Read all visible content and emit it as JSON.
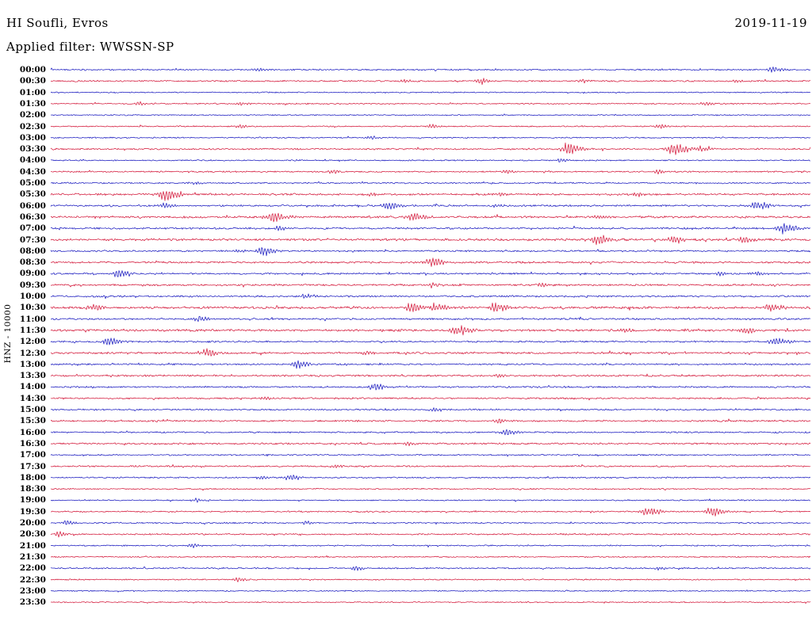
{
  "header": {
    "station_title": "HI Soufli, Evros",
    "date": "2019-11-19",
    "filter_label": "Applied filter: WWSSN-SP"
  },
  "y_axis_label": "HNZ - 10000",
  "chart_data": {
    "type": "line",
    "subtype": "helicorder-seismogram",
    "title": "HI Soufli, Evros",
    "date": "2019-11-19",
    "filter": "WWSSN-SP",
    "channel": "HNZ",
    "gain_scale": 10000,
    "minutes_per_row": 30,
    "grid": false,
    "background": "#ffffff",
    "colors": {
      "even_rows": "#1c1cc0",
      "odd_rows": "#d41a3c"
    },
    "row_labels": [
      "00:00",
      "00:30",
      "01:00",
      "01:30",
      "02:00",
      "02:30",
      "03:00",
      "03:30",
      "04:00",
      "04:30",
      "05:00",
      "05:30",
      "06:00",
      "06:30",
      "07:00",
      "07:30",
      "08:00",
      "08:30",
      "09:00",
      "09:30",
      "10:00",
      "10:30",
      "11:00",
      "11:30",
      "12:00",
      "12:30",
      "13:00",
      "13:30",
      "14:00",
      "14:30",
      "15:00",
      "15:30",
      "16:00",
      "16:30",
      "17:00",
      "17:30",
      "18:00",
      "18:30",
      "19:00",
      "19:30",
      "20:00",
      "20:30",
      "21:00",
      "21:30",
      "22:00",
      "22:30",
      "23:00",
      "23:30"
    ],
    "noise_amp": [
      1.0,
      1.1,
      0.8,
      0.9,
      0.8,
      0.9,
      0.9,
      1.2,
      0.9,
      1.0,
      1.0,
      1.5,
      1.3,
      1.5,
      1.3,
      1.6,
      1.2,
      1.4,
      1.2,
      1.3,
      1.3,
      1.7,
      1.3,
      1.7,
      1.2,
      1.4,
      1.2,
      1.3,
      1.2,
      1.2,
      1.1,
      1.2,
      1.1,
      1.2,
      1.0,
      1.1,
      1.0,
      0.9,
      0.9,
      1.0,
      1.0,
      1.1,
      0.9,
      0.9,
      1.0,
      0.9,
      0.8,
      0.8
    ],
    "events_format": "[row_index, x_fraction_of_row, amplitude_px, half_width_px]",
    "events": [
      [
        0,
        0.27,
        2,
        6
      ],
      [
        0,
        0.95,
        2.5,
        7
      ],
      [
        1,
        0.465,
        2,
        5
      ],
      [
        1,
        0.565,
        3,
        6
      ],
      [
        1,
        0.7,
        2,
        5
      ],
      [
        1,
        0.9,
        2,
        5
      ],
      [
        3,
        0.115,
        2,
        5
      ],
      [
        3,
        0.25,
        2,
        5
      ],
      [
        3,
        0.86,
        2,
        5
      ],
      [
        5,
        0.25,
        2,
        5
      ],
      [
        5,
        0.5,
        2,
        5
      ],
      [
        5,
        0.8,
        2.5,
        6
      ],
      [
        6,
        0.42,
        2,
        5
      ],
      [
        7,
        0.68,
        6,
        8
      ],
      [
        7,
        0.82,
        6,
        9
      ],
      [
        7,
        0.855,
        3,
        6
      ],
      [
        8,
        0.67,
        2,
        5
      ],
      [
        9,
        0.37,
        2,
        5
      ],
      [
        9,
        0.6,
        2,
        5
      ],
      [
        9,
        0.8,
        2,
        5
      ],
      [
        10,
        0.185,
        1.8,
        5
      ],
      [
        11,
        0.15,
        7,
        9
      ],
      [
        11,
        0.42,
        2,
        5
      ],
      [
        11,
        0.59,
        2,
        5
      ],
      [
        11,
        0.77,
        2,
        5
      ],
      [
        12,
        0.15,
        3,
        6
      ],
      [
        12,
        0.445,
        4,
        8
      ],
      [
        12,
        0.585,
        2,
        5
      ],
      [
        12,
        0.93,
        4.5,
        8
      ],
      [
        13,
        0.29,
        5,
        9
      ],
      [
        13,
        0.475,
        4,
        8
      ],
      [
        13,
        0.72,
        2,
        5
      ],
      [
        14,
        0.3,
        2.5,
        6
      ],
      [
        14,
        0.965,
        6,
        9
      ],
      [
        15,
        0.72,
        5,
        8
      ],
      [
        15,
        0.82,
        4,
        7
      ],
      [
        15,
        0.91,
        3.5,
        7
      ],
      [
        16,
        0.245,
        2,
        5
      ],
      [
        16,
        0.28,
        5,
        7
      ],
      [
        17,
        0.5,
        4.5,
        9
      ],
      [
        18,
        0.09,
        5,
        7
      ],
      [
        18,
        0.88,
        2,
        5
      ],
      [
        18,
        0.93,
        2,
        5
      ],
      [
        19,
        0.5,
        2.5,
        6
      ],
      [
        19,
        0.645,
        2,
        5
      ],
      [
        20,
        0.335,
        2.5,
        6
      ],
      [
        21,
        0.055,
        4,
        7
      ],
      [
        21,
        0.475,
        5,
        9
      ],
      [
        21,
        0.505,
        5,
        8
      ],
      [
        21,
        0.585,
        5,
        8
      ],
      [
        21,
        0.945,
        4,
        8
      ],
      [
        22,
        0.195,
        3,
        7
      ],
      [
        23,
        0.535,
        5,
        8
      ],
      [
        23,
        0.755,
        2.5,
        5
      ],
      [
        23,
        0.915,
        4,
        8
      ],
      [
        24,
        0.075,
        5,
        7
      ],
      [
        24,
        0.955,
        4.5,
        8
      ],
      [
        25,
        0.205,
        4,
        7
      ],
      [
        25,
        0.415,
        2.5,
        5
      ],
      [
        26,
        0.325,
        4,
        7
      ],
      [
        27,
        0.59,
        2,
        5
      ],
      [
        28,
        0.425,
        3.5,
        7
      ],
      [
        29,
        0.28,
        2,
        5
      ],
      [
        30,
        0.505,
        2,
        5
      ],
      [
        31,
        0.59,
        3,
        6
      ],
      [
        32,
        0.6,
        3.5,
        7
      ],
      [
        33,
        0.47,
        2,
        5
      ],
      [
        35,
        0.375,
        2,
        5
      ],
      [
        36,
        0.275,
        2,
        5
      ],
      [
        36,
        0.315,
        3,
        6
      ],
      [
        38,
        0.19,
        2,
        5
      ],
      [
        39,
        0.785,
        5,
        8
      ],
      [
        39,
        0.87,
        5,
        8
      ],
      [
        40,
        0.02,
        3,
        5
      ],
      [
        40,
        0.335,
        2,
        5
      ],
      [
        41,
        0.01,
        3,
        5
      ],
      [
        42,
        0.185,
        2,
        5
      ],
      [
        44,
        0.4,
        2.5,
        6
      ],
      [
        44,
        0.8,
        2,
        5
      ],
      [
        45,
        0.245,
        2,
        5
      ]
    ]
  }
}
